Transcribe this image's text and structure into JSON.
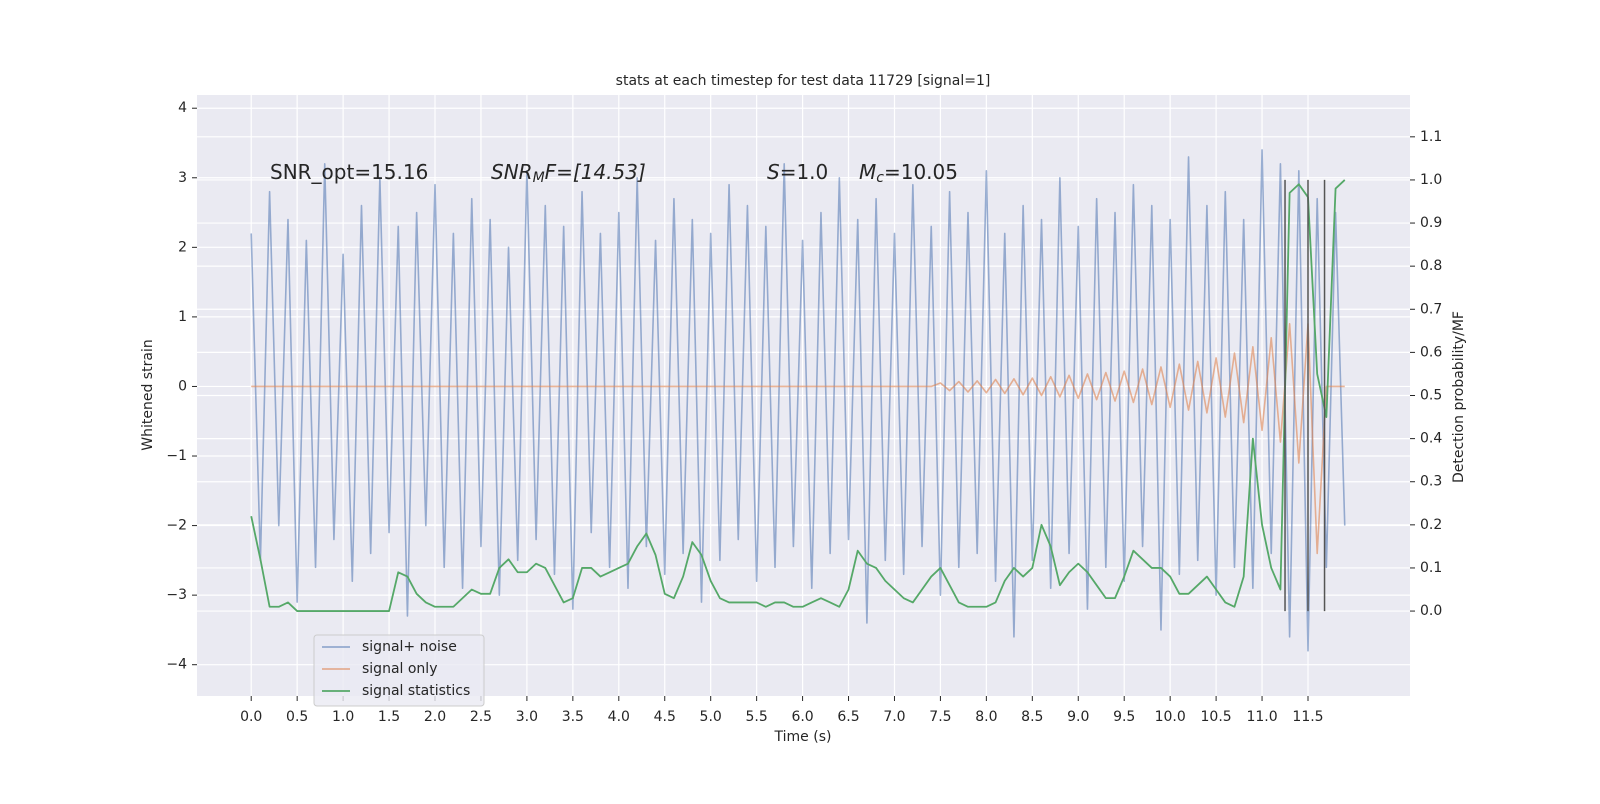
{
  "chart_data": {
    "type": "line",
    "title": "stats at each timestep for test data 11729 [signal=1]",
    "xlabel": "Time (s)",
    "ylabel": "Whitened strain",
    "y2label": "Detection probability/MF",
    "annotations": [
      {
        "base": "SNR_opt=15.16"
      },
      {
        "base": "SNR",
        "sub": "M",
        "rest": "F=[14.53]"
      },
      {
        "base": "S",
        "rest": "=1.0"
      },
      {
        "base": "M",
        "sub": "c",
        "rest": "=10.05"
      }
    ],
    "x": [
      0.0,
      0.1,
      0.2,
      0.3,
      0.4,
      0.5,
      0.6,
      0.7,
      0.8,
      0.9,
      1.0,
      1.1,
      1.2,
      1.3,
      1.4,
      1.5,
      1.6,
      1.7,
      1.8,
      1.9,
      2.0,
      2.1,
      2.2,
      2.3,
      2.4,
      2.5,
      2.6,
      2.7,
      2.8,
      2.9,
      3.0,
      3.1,
      3.2,
      3.3,
      3.4,
      3.5,
      3.6,
      3.7,
      3.8,
      3.9,
      4.0,
      4.1,
      4.2,
      4.3,
      4.4,
      4.5,
      4.6,
      4.7,
      4.8,
      4.9,
      5.0,
      5.1,
      5.2,
      5.3,
      5.4,
      5.5,
      5.6,
      5.7,
      5.8,
      5.9,
      6.0,
      6.1,
      6.2,
      6.3,
      6.4,
      6.5,
      6.6,
      6.7,
      6.8,
      6.9,
      7.0,
      7.1,
      7.2,
      7.3,
      7.4,
      7.5,
      7.6,
      7.7,
      7.8,
      7.9,
      8.0,
      8.1,
      8.2,
      8.3,
      8.4,
      8.5,
      8.6,
      8.7,
      8.8,
      8.9,
      9.0,
      9.1,
      9.2,
      9.3,
      9.4,
      9.5,
      9.6,
      9.7,
      9.8,
      9.9,
      10.0,
      10.1,
      10.2,
      10.3,
      10.4,
      10.5,
      10.6,
      10.7,
      10.8,
      10.9,
      11.0,
      11.1,
      11.2,
      11.3,
      11.4,
      11.5,
      11.6,
      11.7,
      11.8,
      11.9
    ],
    "series": [
      {
        "name": "signal+ noise",
        "color": "#4c72b0",
        "values": [
          2.2,
          -2.5,
          2.8,
          -2.0,
          2.4,
          -3.1,
          2.1,
          -2.6,
          3.2,
          -2.2,
          1.9,
          -2.8,
          2.6,
          -2.4,
          3.0,
          -2.1,
          2.3,
          -3.3,
          2.5,
          -2.0,
          2.9,
          -2.6,
          2.2,
          -2.9,
          2.7,
          -2.3,
          2.4,
          -3.0,
          2.0,
          -2.5,
          3.1,
          -2.2,
          2.6,
          -2.7,
          2.3,
          -3.2,
          2.8,
          -2.1,
          2.2,
          -2.6,
          2.5,
          -2.9,
          3.0,
          -2.3,
          2.1,
          -2.7,
          2.7,
          -2.4,
          2.4,
          -3.1,
          2.2,
          -2.5,
          2.9,
          -2.2,
          2.6,
          -2.8,
          2.3,
          -2.6,
          3.2,
          -2.3,
          2.1,
          -2.9,
          2.5,
          -2.4,
          3.0,
          -2.2,
          2.4,
          -3.4,
          2.7,
          -2.5,
          2.2,
          -2.7,
          2.9,
          -2.3,
          2.3,
          -3.0,
          2.8,
          -2.6,
          2.5,
          -2.4,
          3.1,
          -2.8,
          2.2,
          -3.6,
          2.6,
          -2.5,
          2.4,
          -2.9,
          3.0,
          -2.4,
          2.3,
          -3.2,
          2.7,
          -2.6,
          2.5,
          -2.8,
          2.9,
          -2.3,
          2.6,
          -3.5,
          2.4,
          -2.7,
          3.3,
          -2.5,
          2.6,
          -3.0,
          2.8,
          -2.6,
          2.4,
          -2.9,
          3.4,
          -2.4,
          3.2,
          -3.6,
          3.1,
          -3.8,
          2.7,
          -2.6,
          2.5,
          -2.0
        ]
      },
      {
        "name": "signal only",
        "color": "#dd8452",
        "values": [
          0,
          0,
          0,
          0,
          0,
          0,
          0,
          0,
          0,
          0,
          0,
          0,
          0,
          0,
          0,
          0,
          0,
          0,
          0,
          0,
          0,
          0,
          0,
          0,
          0,
          0,
          0,
          0,
          0,
          0,
          0,
          0,
          0,
          0,
          0,
          0,
          0,
          0,
          0,
          0,
          0,
          0,
          0,
          0,
          0,
          0,
          0,
          0,
          0,
          0,
          0,
          0,
          0,
          0,
          0,
          0,
          0,
          0,
          0,
          0,
          0,
          0,
          0,
          0,
          0,
          0,
          0,
          0,
          0,
          0,
          0,
          0,
          0,
          0,
          0,
          0.05,
          -0.06,
          0.07,
          -0.08,
          0.08,
          -0.09,
          0.1,
          -0.1,
          0.11,
          -0.12,
          0.12,
          -0.13,
          0.14,
          -0.15,
          0.16,
          -0.17,
          0.18,
          -0.19,
          0.2,
          -0.21,
          0.22,
          -0.23,
          0.25,
          -0.26,
          0.28,
          -0.3,
          0.32,
          -0.34,
          0.36,
          -0.38,
          0.41,
          -0.44,
          0.48,
          -0.52,
          0.57,
          -0.63,
          0.7,
          -0.8,
          0.9,
          -1.1,
          0.9,
          -2.4,
          0,
          0,
          0
        ]
      },
      {
        "name": "signal statistics",
        "color": "#55a868",
        "axis": "y2",
        "values": [
          0.22,
          0.12,
          0.01,
          0.01,
          0.02,
          0,
          0,
          0,
          0,
          0,
          0,
          0,
          0,
          0,
          0,
          0,
          0.09,
          0.08,
          0.04,
          0.02,
          0.01,
          0.01,
          0.01,
          0.03,
          0.05,
          0.04,
          0.04,
          0.1,
          0.12,
          0.09,
          0.09,
          0.11,
          0.1,
          0.06,
          0.02,
          0.03,
          0.1,
          0.1,
          0.08,
          0.09,
          0.1,
          0.11,
          0.15,
          0.18,
          0.13,
          0.04,
          0.03,
          0.08,
          0.16,
          0.13,
          0.07,
          0.03,
          0.02,
          0.02,
          0.02,
          0.02,
          0.01,
          0.02,
          0.02,
          0.01,
          0.01,
          0.02,
          0.03,
          0.02,
          0.01,
          0.05,
          0.14,
          0.11,
          0.1,
          0.07,
          0.05,
          0.03,
          0.02,
          0.05,
          0.08,
          0.1,
          0.06,
          0.02,
          0.01,
          0.01,
          0.01,
          0.02,
          0.07,
          0.1,
          0.08,
          0.1,
          0.2,
          0.15,
          0.06,
          0.09,
          0.11,
          0.09,
          0.06,
          0.03,
          0.03,
          0.08,
          0.14,
          0.12,
          0.1,
          0.1,
          0.08,
          0.04,
          0.04,
          0.06,
          0.08,
          0.05,
          0.02,
          0.01,
          0.08,
          0.4,
          0.2,
          0.1,
          0.05,
          0.97,
          0.99,
          0.96,
          0.55,
          0.45,
          0.98,
          1.0
        ]
      }
    ],
    "vlines": [
      11.25,
      11.5,
      11.68
    ],
    "vline_color": "#555555",
    "xlim": [
      -0.59,
      12.61
    ],
    "xticks": [
      {
        "value": 0,
        "label": "0.0"
      },
      0.5,
      {
        "value": 1,
        "label": "1.0"
      },
      1.5,
      {
        "value": 2,
        "label": "2.0"
      },
      2.5,
      {
        "value": 3,
        "label": "3.0"
      },
      3.5,
      {
        "value": 4,
        "label": "4.0"
      },
      4.5,
      {
        "value": 5,
        "label": "5.0"
      },
      5.5,
      {
        "value": 6,
        "label": "6.0"
      },
      6.5,
      {
        "value": 7,
        "label": "7.0"
      },
      7.5,
      {
        "value": 8,
        "label": "8.0"
      },
      8.5,
      {
        "value": 9,
        "label": "9.0"
      },
      9.5,
      {
        "value": 10,
        "label": "10.0"
      },
      10.5,
      {
        "value": 11,
        "label": "11.0"
      },
      11.5
    ],
    "ylim": [
      -4.45,
      4.19
    ],
    "yticks": [
      {
        "value": -4,
        "label": "−4"
      },
      {
        "value": -3,
        "label": "−3"
      },
      {
        "value": -2,
        "label": "−2"
      },
      {
        "value": -1,
        "label": "−1"
      },
      0,
      1,
      2,
      3,
      4
    ],
    "y2lim": [
      -0.197,
      1.197
    ],
    "y2ticks": [
      {
        "value": 0,
        "label": "0.0"
      },
      0.1,
      0.2,
      0.3,
      0.4,
      0.5,
      0.6,
      0.7,
      0.8,
      0.9,
      {
        "value": 1,
        "label": "1.0"
      },
      1.1
    ],
    "grid": true,
    "legend": "lower left",
    "background": "#eaeaf2"
  }
}
